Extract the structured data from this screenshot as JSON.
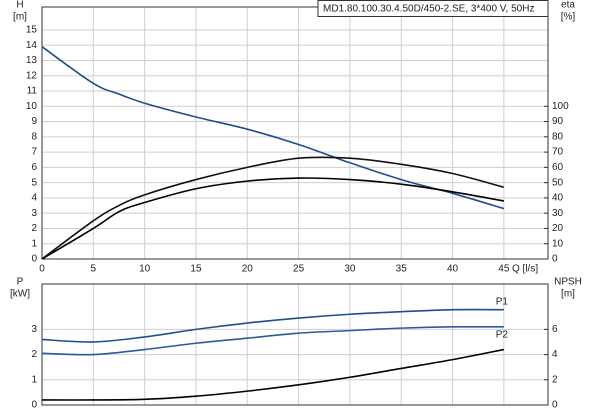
{
  "chart_data": [
    {
      "type": "line",
      "title": "MD1.80.100.30.4.50D/450-2.SE, 3*400 V, 50Hz",
      "ylabel": "H",
      "yunit": "[m]",
      "y2label": "eta",
      "y2unit": "[%]",
      "xlabel": "Q [l/s]",
      "xlim": [
        0,
        49.3
      ],
      "xticks": [
        0,
        5,
        10,
        15,
        20,
        25,
        30,
        35,
        40,
        45
      ],
      "ylim": [
        0,
        16.5
      ],
      "yticks": [
        0,
        1,
        2,
        3,
        4,
        5,
        6,
        7,
        8,
        9,
        10,
        11,
        12,
        13,
        14,
        15
      ],
      "y2lim": [
        0,
        165
      ],
      "y2ticks": [
        0,
        10,
        20,
        30,
        40,
        50,
        60,
        70,
        80,
        90,
        100
      ],
      "grid": true,
      "x": [
        0,
        5,
        7.5,
        10,
        15,
        20,
        25,
        30,
        35,
        40,
        45
      ],
      "series": [
        {
          "color": "#1f4e8c",
          "values": [
            13.9,
            11.5,
            10.8,
            10.2,
            9.3,
            8.5,
            7.5,
            6.3,
            5.2,
            4.3,
            3.3
          ]
        },
        {
          "color": "#111111",
          "axis": "y2",
          "values": [
            0,
            25,
            35,
            42,
            52,
            60,
            66,
            66,
            62,
            56,
            47
          ]
        },
        {
          "color": "#000000",
          "axis": "y2",
          "values": [
            0,
            20,
            31,
            37,
            46,
            51,
            53,
            52,
            49,
            44,
            38
          ]
        }
      ]
    },
    {
      "type": "line",
      "ylabel": "P",
      "yunit": "[kW]",
      "y2label": "NPSH",
      "y2unit": "[m]",
      "xlim": [
        0,
        49.3
      ],
      "xticks": [
        0,
        5,
        10,
        15,
        20,
        25,
        30,
        35,
        40,
        45
      ],
      "ylim": [
        0,
        4.8
      ],
      "yticks": [
        0,
        1,
        2,
        3
      ],
      "y2lim": [
        0,
        9.6
      ],
      "y2ticks": [
        0,
        2,
        4,
        6
      ],
      "grid": true,
      "x": [
        0,
        5,
        10,
        15,
        20,
        25,
        30,
        35,
        40,
        45
      ],
      "series": [
        {
          "name": "P1",
          "color": "#1f4e8c",
          "values": [
            2.6,
            2.5,
            2.7,
            3.0,
            3.25,
            3.45,
            3.6,
            3.7,
            3.78,
            3.78
          ]
        },
        {
          "name": "P2",
          "color": "#2a5b9a",
          "values": [
            2.05,
            2.0,
            2.2,
            2.45,
            2.65,
            2.85,
            2.95,
            3.05,
            3.1,
            3.1
          ]
        },
        {
          "color": "#000000",
          "axis": "y2",
          "values": [
            0.4,
            0.4,
            0.45,
            0.7,
            1.1,
            1.6,
            2.2,
            2.9,
            3.6,
            4.4
          ]
        }
      ]
    }
  ]
}
